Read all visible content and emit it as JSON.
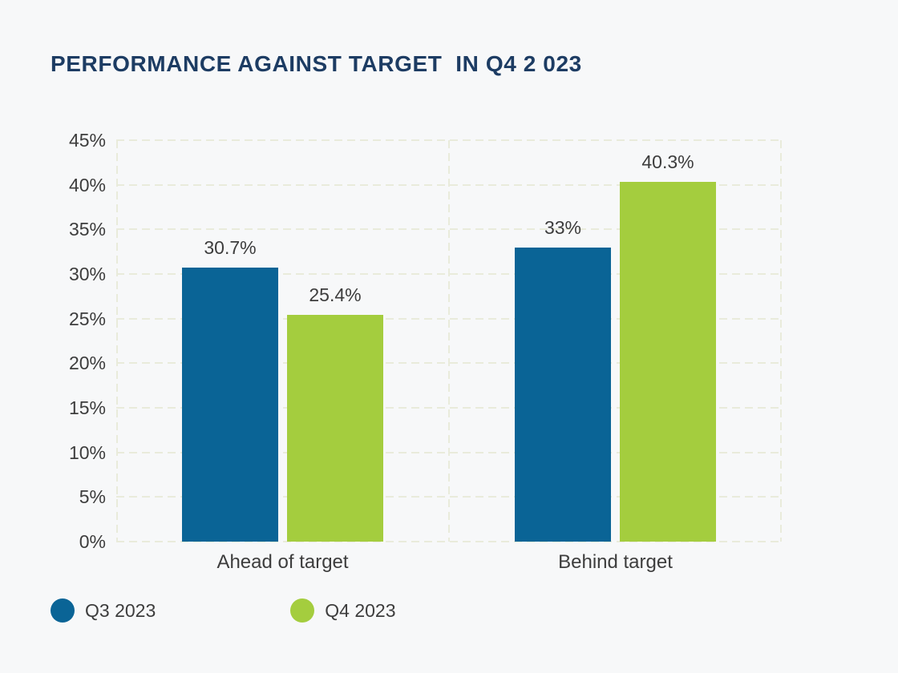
{
  "page": {
    "background_color": "#f7f8f9",
    "title_color": "#1d3c63",
    "text_color": "#3d3d3d",
    "grid_color": "#e9ebdb"
  },
  "chart_data": {
    "type": "bar",
    "title": "PERFORMANCE AGAINST TARGET  IN Q4 2 023",
    "categories": [
      "Ahead of target",
      "Behind target"
    ],
    "series": [
      {
        "name": "Q3 2023",
        "color": "#0a6496",
        "values": [
          30.7,
          33
        ],
        "value_labels": [
          "30.7%",
          "33%"
        ]
      },
      {
        "name": "Q4 2023",
        "color": "#a4cd3e",
        "values": [
          25.4,
          40.3
        ],
        "value_labels": [
          "25.4%",
          "40.3%"
        ]
      }
    ],
    "y_axis": {
      "tick_labels": [
        "45%",
        "40%",
        "35%",
        "30%",
        "25%",
        "20%",
        "15%",
        "10%",
        "5%",
        "0%"
      ],
      "min": 0,
      "max": 45,
      "step": 5,
      "grid": "dashed"
    },
    "xlabel": "",
    "ylabel": "",
    "legend": {
      "position": "bottom-left",
      "entries": [
        "Q3 2023",
        "Q4 2023"
      ]
    }
  }
}
